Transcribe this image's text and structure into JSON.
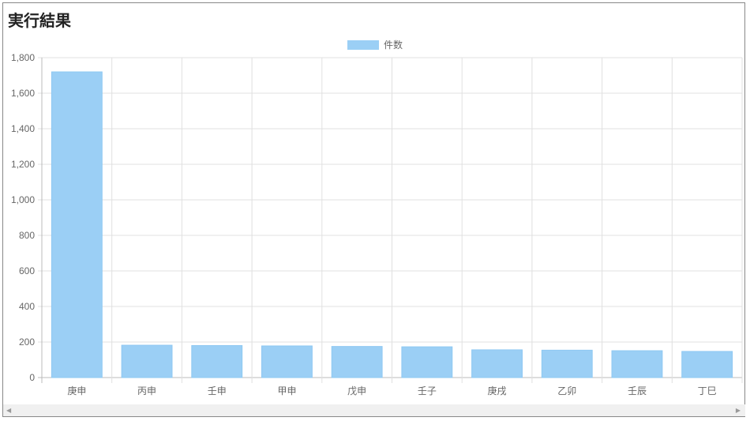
{
  "title": "実行結果",
  "colors": {
    "bar": "#9bcff5",
    "bar_border": "#8ec8f2",
    "grid": "#e0e0e0"
  },
  "chart_data": {
    "type": "bar",
    "title": "",
    "categories": [
      "庚申",
      "丙申",
      "壬申",
      "甲申",
      "戊申",
      "壬子",
      "庚戌",
      "乙卯",
      "壬辰",
      "丁巳"
    ],
    "series": [
      {
        "name": "件数",
        "values": [
          1720,
          182,
          180,
          178,
          175,
          173,
          156,
          154,
          151,
          147
        ]
      }
    ],
    "ylim": [
      0,
      1800
    ],
    "yticks": [
      "0",
      "200",
      "400",
      "600",
      "800",
      "1,000",
      "1,200",
      "1,400",
      "1,600",
      "1,800"
    ],
    "grid": true,
    "legend": "top-center"
  },
  "scrollbar": {
    "left_icon": "triangle-left-icon",
    "right_icon": "triangle-right-icon"
  }
}
